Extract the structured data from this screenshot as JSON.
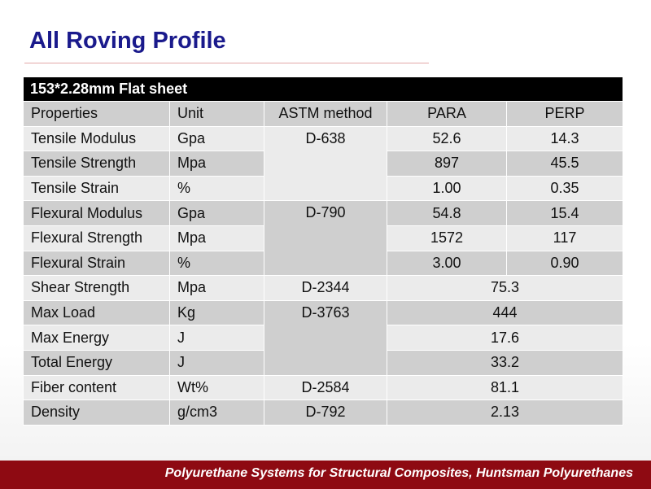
{
  "title": "All Roving Profile",
  "table": {
    "caption": "153*2.28mm Flat sheet",
    "headers": [
      "Properties",
      "Unit",
      "ASTM method",
      "PARA",
      "PERP"
    ],
    "rows": [
      {
        "property": "Tensile Modulus",
        "unit": "Gpa",
        "para": "52.6",
        "perp": "14.3"
      },
      {
        "property": "Tensile Strength",
        "unit": "Mpa",
        "para": "897",
        "perp": "45.5"
      },
      {
        "property": "Tensile Strain",
        "unit": "%",
        "para": "1.00",
        "perp": "0.35"
      },
      {
        "property": "Flexural Modulus",
        "unit": "Gpa",
        "para": "54.8",
        "perp": "15.4"
      },
      {
        "property": "Flexural Strength",
        "unit": "Mpa",
        "para": "1572",
        "perp": "117"
      },
      {
        "property": "Flexural Strain",
        "unit": "%",
        "para": "3.00",
        "perp": "0.90"
      },
      {
        "property": "Shear Strength",
        "unit": "Mpa",
        "value": "75.3"
      },
      {
        "property": "Max Load",
        "unit": "Kg",
        "value": "444"
      },
      {
        "property": "Max Energy",
        "unit": "J",
        "value": "17.6"
      },
      {
        "property": "Total Energy",
        "unit": "J",
        "value": "33.2"
      },
      {
        "property": "Fiber content",
        "unit": "Wt%",
        "value": "81.1"
      },
      {
        "property": "Density",
        "unit": "g/cm3",
        "value": "2.13"
      }
    ],
    "methods": {
      "tensile": "D-638",
      "flexural": "D-790",
      "shear": "D-2344",
      "impact": "D-3763",
      "fiber": "D-2584",
      "density": "D-792"
    }
  },
  "footer": "Polyurethane Systems for Structural Composites, Huntsman Polyurethanes",
  "colors": {
    "title": "#1a1a8c",
    "header_bg": "#000000",
    "row_dark": "#cfcfcf",
    "row_light": "#ebebeb",
    "footer_bg": "#8e0a12"
  }
}
